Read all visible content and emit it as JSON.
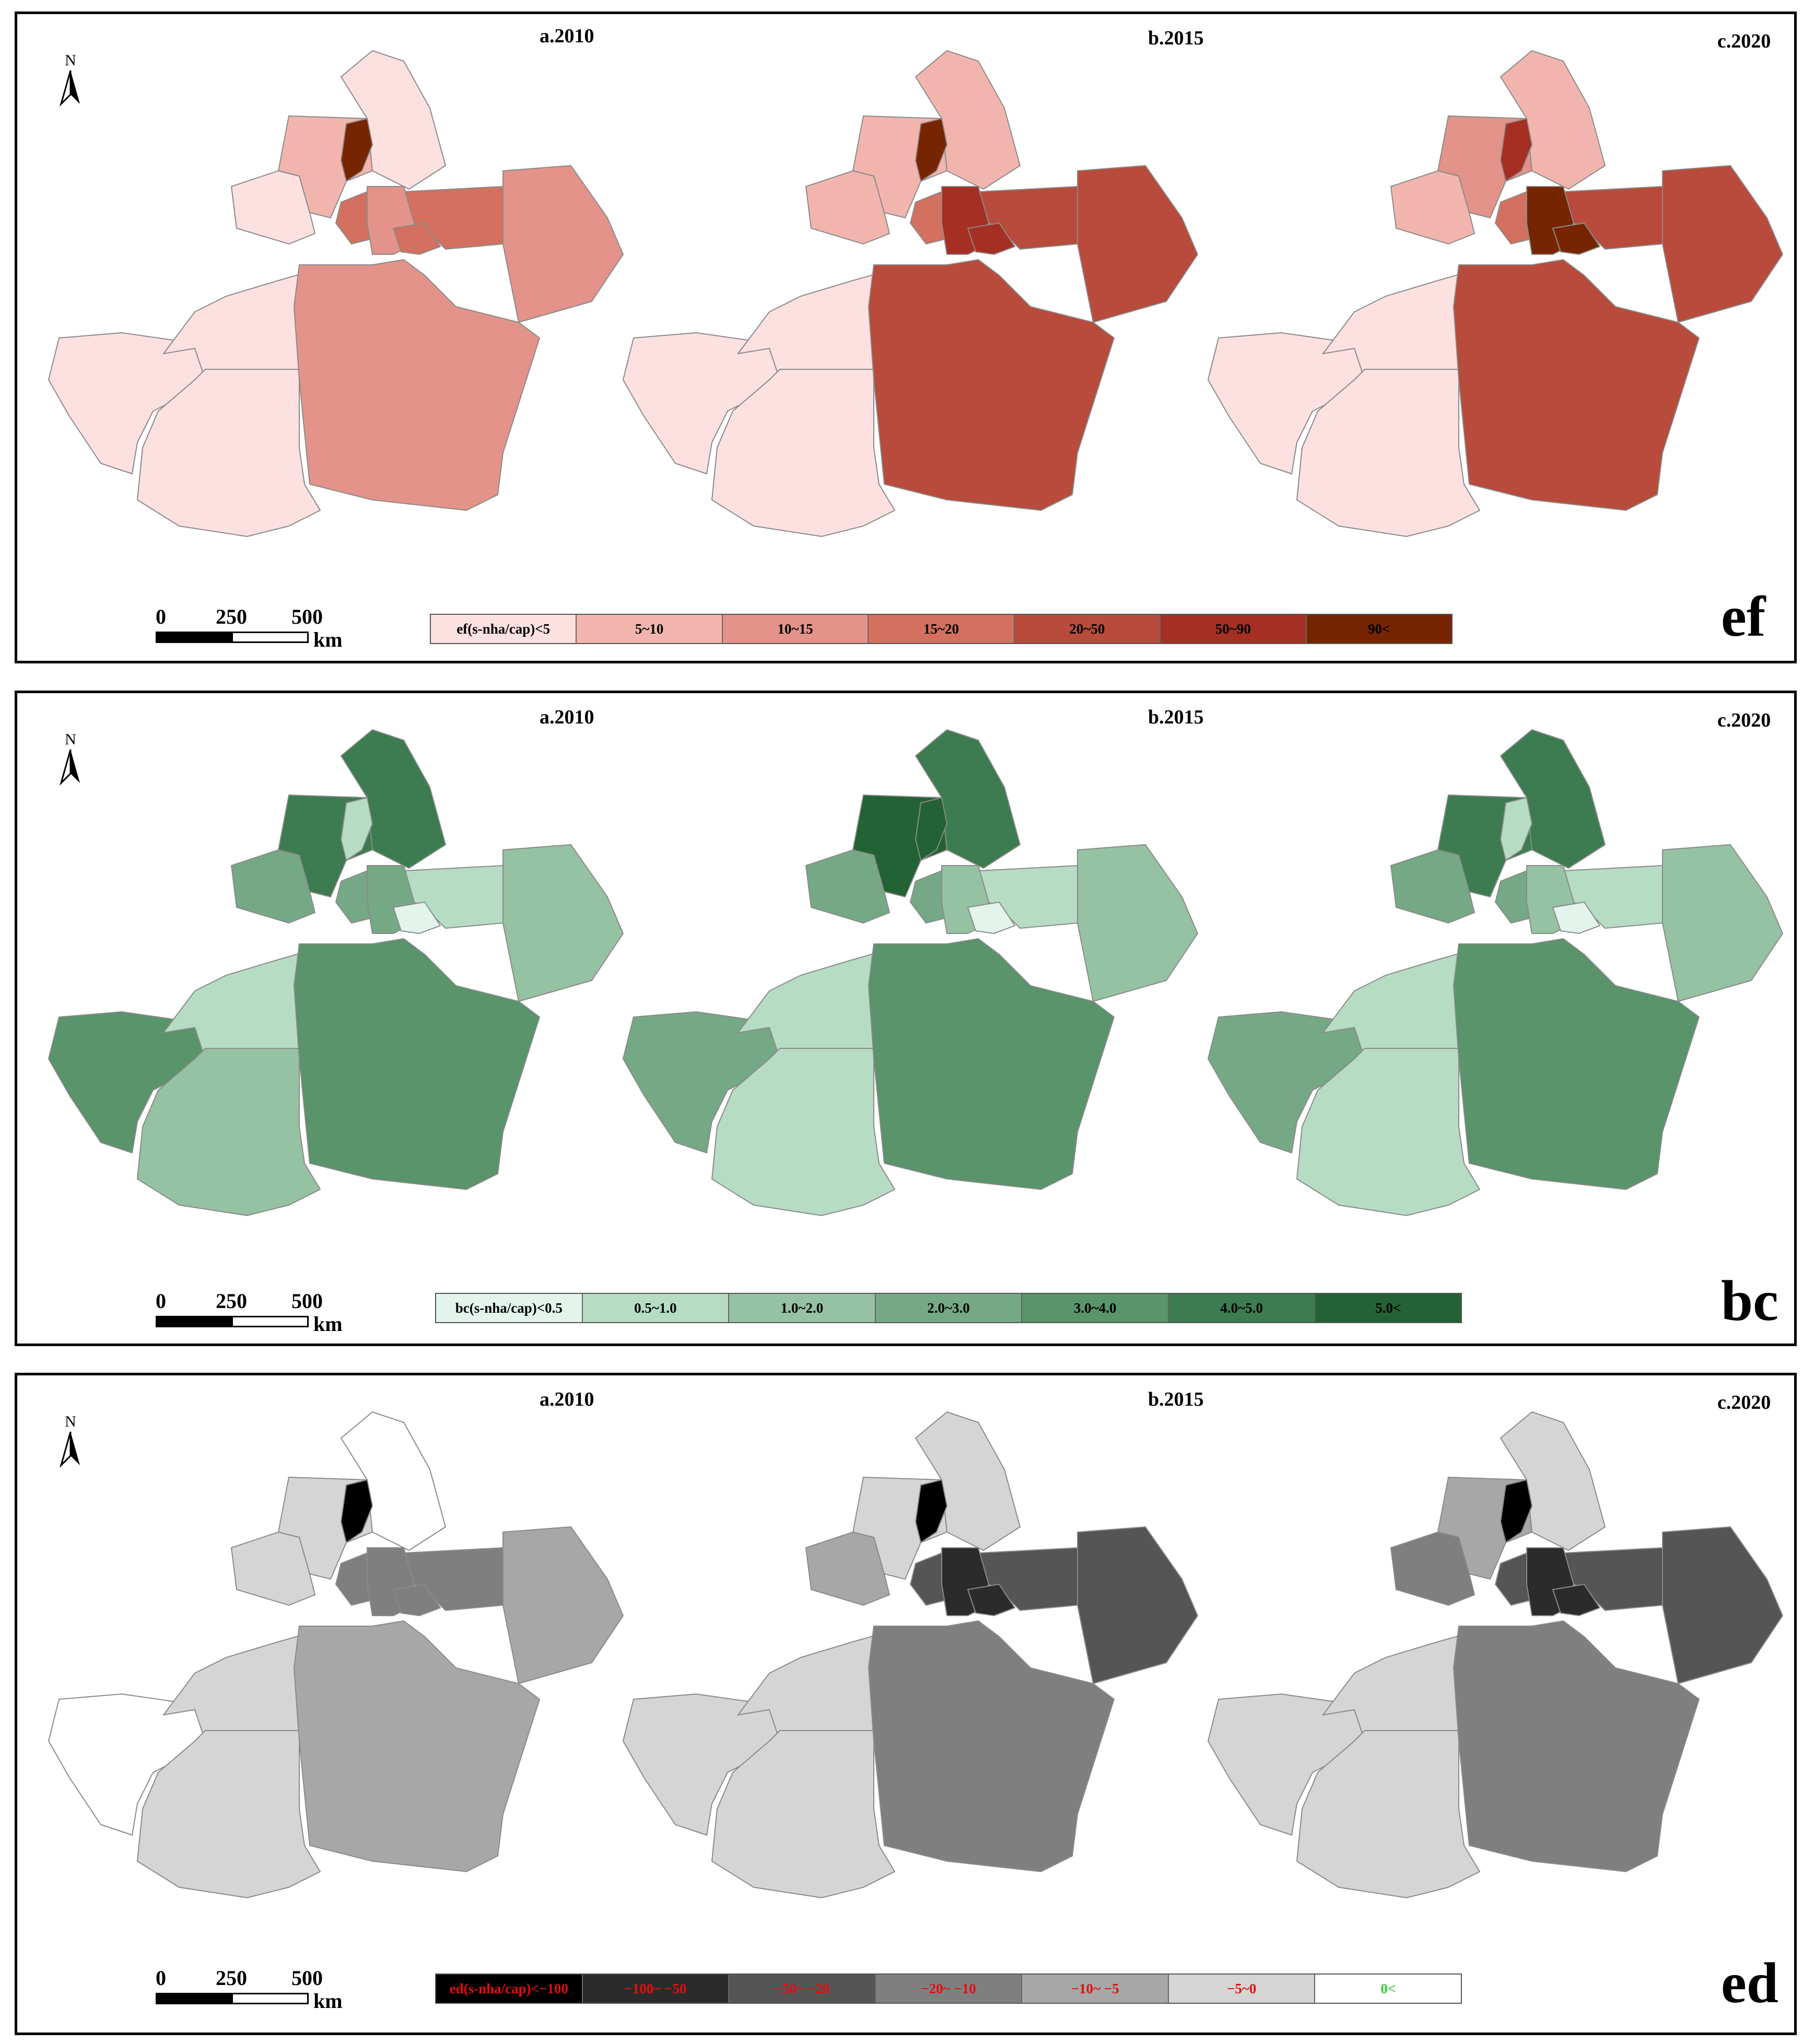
{
  "panels": [
    {
      "id": "ef",
      "tag": "ef",
      "north_label": "N",
      "scale": {
        "ticks": [
          "0",
          "250",
          "500"
        ],
        "unit": "km"
      },
      "map_titles": [
        "a.2010",
        "b.2015",
        "c.2020"
      ],
      "legend": [
        {
          "label": "ef(s-nha/cap)<5",
          "color": "#fde0e0",
          "text_color": "#000000"
        },
        {
          "label": "5~10",
          "color": "#f2b5ae",
          "text_color": "#000000"
        },
        {
          "label": "10~15",
          "color": "#e3938a",
          "text_color": "#000000"
        },
        {
          "label": "15~20",
          "color": "#d3705f",
          "text_color": "#000000"
        },
        {
          "label": "20~50",
          "color": "#b84b3b",
          "text_color": "#000000"
        },
        {
          "label": "50~90",
          "color": "#a52f22",
          "text_color": "#000000"
        },
        {
          "label": "90<",
          "color": "#772500",
          "text_color": "#000000"
        }
      ],
      "regions": [
        [
          "#fde0e0",
          "#f2b5ae",
          "#fde0e0",
          "#e3938a",
          "#d3705f",
          "#d3705f",
          "#d3705f",
          "#e3938a",
          "#f2b5ae",
          "#fde0e0",
          "#fde0e0",
          "#e3938a",
          "#772500",
          "#fde0e0"
        ],
        [
          "#f2b5ae",
          "#f2b5ae",
          "#f2b5ae",
          "#a52f22",
          "#a52f22",
          "#d3705f",
          "#b84b3b",
          "#b84b3b",
          "#e3938a",
          "#fde0e0",
          "#fde0e0",
          "#b84b3b",
          "#772500",
          "#fde0e0"
        ],
        [
          "#f2b5ae",
          "#e3938a",
          "#f2b5ae",
          "#772500",
          "#772500",
          "#d3705f",
          "#b84b3b",
          "#b84b3b",
          "#e3938a",
          "#fde0e0",
          "#fde0e0",
          "#b84b3b",
          "#a52f22",
          "#fde0e0"
        ]
      ]
    },
    {
      "id": "bc",
      "tag": "bc",
      "north_label": "N",
      "scale": {
        "ticks": [
          "0",
          "250",
          "500"
        ],
        "unit": "km"
      },
      "map_titles": [
        "a.2010",
        "b.2015",
        "c.2020"
      ],
      "legend": [
        {
          "label": "bc(s-nha/cap)<0.5",
          "color": "#e3f4ec",
          "text_color": "#000000"
        },
        {
          "label": "0.5~1.0",
          "color": "#b6dcc4",
          "text_color": "#000000"
        },
        {
          "label": "1.0~2.0",
          "color": "#95c2a2",
          "text_color": "#000000"
        },
        {
          "label": "2.0~3.0",
          "color": "#75a985",
          "text_color": "#000000"
        },
        {
          "label": "3.0~4.0",
          "color": "#59946a",
          "text_color": "#000000"
        },
        {
          "label": "4.0~5.0",
          "color": "#3c7c50",
          "text_color": "#000000"
        },
        {
          "label": "5.0<",
          "color": "#236234",
          "text_color": "#000000"
        }
      ],
      "regions": [
        [
          "#3c7c50",
          "#3c7c50",
          "#75a985",
          "#75a985",
          "#e3f4ec",
          "#75a985",
          "#b6dcc4",
          "#95c2a2",
          "#95c2a2",
          "#b6dcc4",
          "#95c2a2",
          "#59946a",
          "#b6dcc4",
          "#59946a"
        ],
        [
          "#3c7c50",
          "#236234",
          "#75a985",
          "#95c2a2",
          "#e3f4ec",
          "#75a985",
          "#b6dcc4",
          "#95c2a2",
          "#95c2a2",
          "#b6dcc4",
          "#b6dcc4",
          "#59946a",
          "#236234",
          "#75a985"
        ],
        [
          "#3c7c50",
          "#3c7c50",
          "#75a985",
          "#95c2a2",
          "#e3f4ec",
          "#75a985",
          "#b6dcc4",
          "#95c2a2",
          "#95c2a2",
          "#b6dcc4",
          "#b6dcc4",
          "#59946a",
          "#b6dcc4",
          "#75a985"
        ]
      ]
    },
    {
      "id": "ed",
      "tag": "ed",
      "north_label": "N",
      "scale": {
        "ticks": [
          "0",
          "250",
          "500"
        ],
        "unit": "km"
      },
      "map_titles": [
        "a.2010",
        "b.2015",
        "c.2020"
      ],
      "legend": [
        {
          "label": "ed(s-nha/cap)<−100",
          "color": "#000000",
          "text_color": "#e01010"
        },
        {
          "label": "−100~ −50",
          "color": "#2b2b2b",
          "text_color": "#e01010"
        },
        {
          "label": "−50~ −20",
          "color": "#555555",
          "text_color": "#e01010"
        },
        {
          "label": "−20~ −10",
          "color": "#7f7f7f",
          "text_color": "#e01010"
        },
        {
          "label": "−10~ −5",
          "color": "#a7a7a7",
          "text_color": "#e01010"
        },
        {
          "label": "−5~0",
          "color": "#d5d5d5",
          "text_color": "#e01010"
        },
        {
          "label": "0<",
          "color": "#ffffff",
          "text_color": "#30d030"
        }
      ],
      "regions": [
        [
          "#ffffff",
          "#d5d5d5",
          "#d5d5d5",
          "#7f7f7f",
          "#7f7f7f",
          "#7f7f7f",
          "#7f7f7f",
          "#a7a7a7",
          "#a7a7a7",
          "#d5d5d5",
          "#d5d5d5",
          "#a7a7a7",
          "#000000",
          "#ffffff"
        ],
        [
          "#d5d5d5",
          "#d5d5d5",
          "#a7a7a7",
          "#2b2b2b",
          "#2b2b2b",
          "#555555",
          "#555555",
          "#555555",
          "#a7a7a7",
          "#d5d5d5",
          "#d5d5d5",
          "#7f7f7f",
          "#000000",
          "#d5d5d5"
        ],
        [
          "#d5d5d5",
          "#a7a7a7",
          "#7f7f7f",
          "#2b2b2b",
          "#2b2b2b",
          "#555555",
          "#555555",
          "#555555",
          "#a7a7a7",
          "#d5d5d5",
          "#d5d5d5",
          "#7f7f7f",
          "#000000",
          "#d5d5d5"
        ]
      ]
    }
  ]
}
